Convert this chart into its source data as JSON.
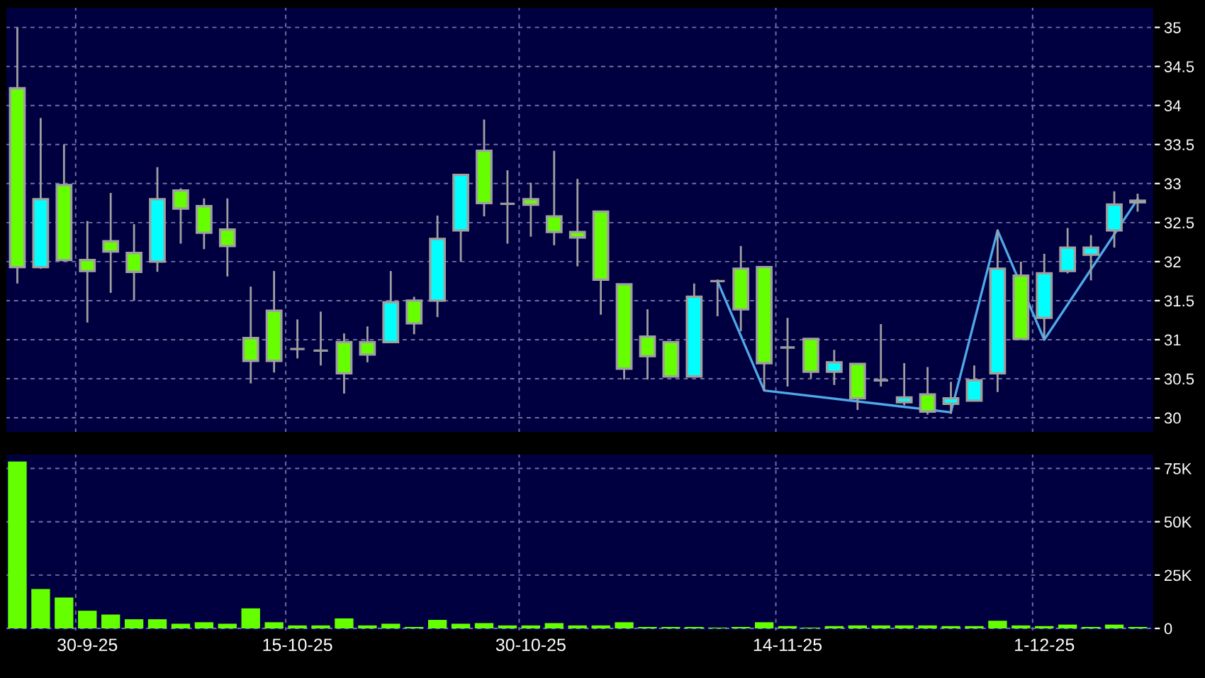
{
  "chart_data": [
    {
      "type": "candlestick",
      "categories": [
        null,
        null,
        null,
        null,
        null,
        null,
        null,
        null,
        null,
        null,
        null,
        null,
        null,
        null,
        null,
        null,
        null,
        null,
        null,
        null,
        null,
        null,
        null,
        null,
        null,
        null,
        null,
        null,
        null,
        null,
        null,
        null,
        null,
        null,
        null,
        null,
        null,
        null,
        null,
        null,
        null,
        null,
        null,
        null,
        null,
        null,
        null,
        null,
        null
      ],
      "ohlc": [
        [
          34.22,
          35.0,
          31.72,
          31.93
        ],
        [
          31.93,
          33.84,
          31.91,
          32.8
        ],
        [
          32.98,
          33.5,
          32.0,
          32.02
        ],
        [
          32.02,
          32.52,
          31.22,
          31.88
        ],
        [
          32.26,
          32.88,
          31.6,
          32.13
        ],
        [
          32.11,
          32.48,
          31.5,
          31.87
        ],
        [
          32.0,
          33.21,
          31.87,
          32.8
        ],
        [
          32.91,
          32.94,
          32.23,
          32.68
        ],
        [
          32.71,
          32.81,
          32.16,
          32.37
        ],
        [
          32.41,
          32.81,
          31.81,
          32.2
        ],
        [
          31.02,
          31.68,
          30.44,
          30.73
        ],
        [
          31.37,
          31.88,
          30.58,
          30.73
        ],
        [
          30.88,
          31.26,
          30.76,
          30.88
        ],
        [
          30.86,
          31.36,
          30.67,
          30.86
        ],
        [
          30.97,
          31.08,
          30.31,
          30.57
        ],
        [
          30.97,
          31.17,
          30.71,
          30.81
        ],
        [
          30.97,
          31.88,
          30.97,
          31.48
        ],
        [
          31.5,
          31.55,
          31.07,
          31.21
        ],
        [
          31.5,
          32.59,
          31.29,
          32.29
        ],
        [
          32.4,
          33.12,
          32.0,
          33.11
        ],
        [
          33.42,
          33.82,
          32.58,
          32.75
        ],
        [
          32.74,
          33.17,
          32.23,
          32.74
        ],
        [
          32.8,
          33.01,
          32.32,
          32.73
        ],
        [
          32.58,
          33.42,
          32.21,
          32.38
        ],
        [
          32.38,
          33.06,
          31.94,
          32.31
        ],
        [
          32.64,
          32.64,
          31.32,
          31.77
        ],
        [
          31.71,
          31.71,
          30.49,
          30.63
        ],
        [
          31.04,
          31.39,
          30.49,
          30.79
        ],
        [
          30.97,
          30.97,
          30.52,
          30.53
        ],
        [
          30.53,
          31.72,
          30.53,
          31.55
        ],
        [
          31.75,
          31.77,
          31.3,
          31.75
        ],
        [
          31.91,
          32.2,
          31.11,
          31.39
        ],
        [
          31.93,
          31.93,
          30.34,
          30.7
        ],
        [
          30.9,
          31.28,
          30.4,
          30.9
        ],
        [
          31.01,
          31.01,
          30.51,
          30.59
        ],
        [
          30.59,
          30.87,
          30.42,
          30.71
        ],
        [
          30.69,
          30.69,
          30.1,
          30.25
        ],
        [
          30.48,
          31.2,
          30.4,
          30.48
        ],
        [
          30.2,
          30.7,
          30.16,
          30.26
        ],
        [
          30.3,
          30.65,
          30.04,
          30.08
        ],
        [
          30.18,
          30.46,
          30.05,
          30.25
        ],
        [
          30.22,
          30.67,
          30.22,
          30.48
        ],
        [
          30.57,
          32.41,
          30.33,
          31.91
        ],
        [
          31.82,
          32.0,
          31.0,
          31.01
        ],
        [
          31.28,
          32.1,
          31.01,
          31.85
        ],
        [
          31.88,
          32.43,
          31.85,
          32.18
        ],
        [
          32.09,
          32.34,
          31.76,
          32.18
        ],
        [
          32.4,
          32.9,
          32.18,
          32.73
        ],
        [
          32.76,
          32.87,
          32.64,
          32.78
        ]
      ],
      "colors": [
        "#66ff00",
        "#00ffff",
        "#66ff00",
        "#66ff00",
        "#66ff00",
        "#66ff00",
        "#00ffff",
        "#66ff00",
        "#66ff00",
        "#66ff00",
        "#66ff00",
        "#66ff00",
        "#999999",
        "#999999",
        "#66ff00",
        "#66ff00",
        "#00ffff",
        "#66ff00",
        "#00ffff",
        "#00ffff",
        "#66ff00",
        "#999999",
        "#66ff00",
        "#66ff00",
        "#66ff00",
        "#66ff00",
        "#66ff00",
        "#66ff00",
        "#66ff00",
        "#00ffff",
        "#999999",
        "#66ff00",
        "#66ff00",
        "#999999",
        "#66ff00",
        "#00ffff",
        "#66ff00",
        "#999999",
        "#00ffff",
        "#66ff00",
        "#00ffff",
        "#00ffff",
        "#00ffff",
        "#66ff00",
        "#00ffff",
        "#00ffff",
        "#00ffff",
        "#00ffff",
        "#00ffff"
      ],
      "series": [
        {
          "type": "line",
          "color": "#4fa8e8",
          "values": [
            null,
            null,
            null,
            null,
            null,
            null,
            null,
            null,
            null,
            null,
            null,
            null,
            null,
            null,
            null,
            null,
            null,
            null,
            null,
            null,
            null,
            null,
            null,
            null,
            null,
            null,
            null,
            null,
            null,
            null,
            31.75,
            null,
            30.35,
            null,
            null,
            null,
            null,
            null,
            null,
            null,
            30.07,
            null,
            32.4,
            null,
            31.0,
            null,
            null,
            null,
            32.8
          ]
        }
      ],
      "ylim": [
        29.81,
        35.26
      ],
      "yticks": [
        30,
        30.5,
        31,
        31.5,
        32,
        32.5,
        33,
        33.5,
        34,
        34.5,
        35
      ],
      "grid": true,
      "tick_labels": "y"
    },
    {
      "type": "bar",
      "categories": [
        null,
        null,
        null,
        "30-9-25",
        null,
        null,
        null,
        null,
        null,
        null,
        null,
        null,
        "15-10-25",
        null,
        null,
        null,
        null,
        null,
        null,
        null,
        null,
        null,
        "30-10-25",
        null,
        null,
        null,
        null,
        null,
        null,
        null,
        null,
        null,
        null,
        "14-11-25",
        null,
        null,
        null,
        null,
        null,
        null,
        null,
        null,
        null,
        null,
        "1-12-25",
        null,
        null,
        null,
        null
      ],
      "values": [
        78200,
        18500,
        14500,
        8300,
        6500,
        4300,
        4300,
        2200,
        2900,
        2200,
        9400,
        2900,
        1400,
        1400,
        4700,
        1400,
        2200,
        700,
        4000,
        2200,
        2500,
        1400,
        1400,
        2500,
        1400,
        1400,
        2900,
        700,
        700,
        700,
        400,
        700,
        2900,
        1100,
        400,
        1100,
        1400,
        1400,
        1400,
        1400,
        1100,
        1100,
        3600,
        1400,
        1100,
        1800,
        700,
        1800,
        700
      ],
      "color": "#66ff00",
      "ylim": [
        -1300,
        81800
      ],
      "yticks": [
        0,
        {
          "value": 25000,
          "label": "25K"
        },
        {
          "value": 50000,
          "label": "50K"
        },
        {
          "value": 75000,
          "label": "75K"
        }
      ],
      "grid": true
    }
  ]
}
